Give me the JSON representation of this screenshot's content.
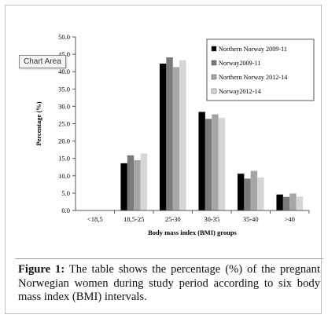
{
  "tooltip": {
    "label": "Chart Area"
  },
  "caption": {
    "label": "Figure 1:",
    "text": "The table shows the percentage (%) of the pregnant Norwegian women during study period according to six body mass index (BMI) intervals."
  },
  "chart_data": {
    "type": "bar",
    "xlabel": "Body mass index (BMI) groups",
    "ylabel": "Percentage (%)",
    "ylim": [
      0,
      50
    ],
    "y_ticks": [
      "0.0",
      "5.0",
      "10.0",
      "15.0",
      "20.0",
      "25.0",
      "30.0",
      "35.0",
      "40.0",
      "45.0",
      "50.0"
    ],
    "categories": [
      "<18,5",
      "18,5-25",
      "25-30",
      "30-35",
      "35-40",
      ">40"
    ],
    "legend_position": "top-right",
    "grid": false,
    "series": [
      {
        "name": "Northern Norway 2009-11",
        "color": "#000000",
        "values": [
          0,
          13.6,
          42.3,
          28.4,
          10.6,
          4.6
        ]
      },
      {
        "name": "Norway2009-11",
        "color": "#7a7a7a",
        "values": [
          0,
          15.9,
          44.1,
          26.4,
          9.2,
          3.9
        ]
      },
      {
        "name": "Northern Norway 2012-14",
        "color": "#a6a6a6",
        "values": [
          0,
          14.5,
          41.3,
          27.7,
          11.4,
          4.9
        ]
      },
      {
        "name": "Norway2012-14",
        "color": "#d6d6d6",
        "values": [
          0,
          16.4,
          43.3,
          26.7,
          9.5,
          4.0
        ]
      }
    ]
  }
}
